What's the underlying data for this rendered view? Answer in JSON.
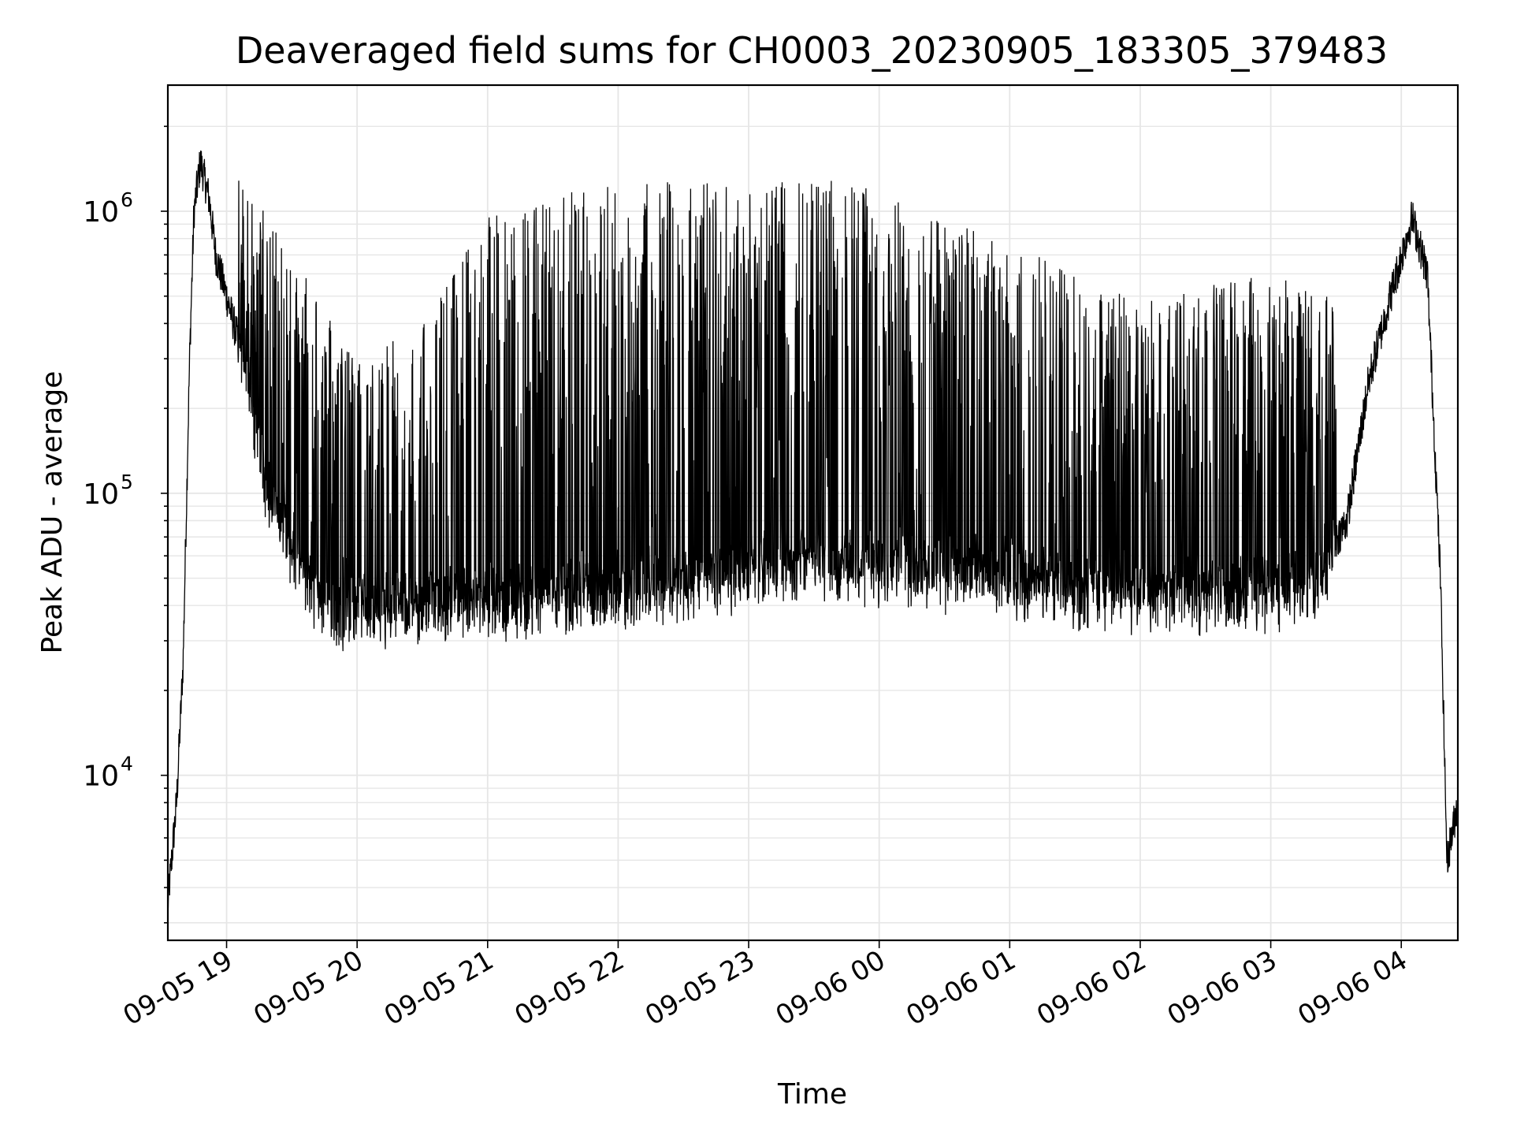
{
  "chart_data": {
    "type": "line",
    "title": "Deaveraged field sums for CH0003_20230905_183305_379483",
    "xlabel": "Time",
    "ylabel": "Peak ADU - average",
    "yscale": "log",
    "xlim": [
      "09-05 18:33",
      "09-06 04:26"
    ],
    "ylim": [
      2600,
      2800000
    ],
    "grid": true,
    "line_color": "#000000",
    "x_ticks": [
      "09-05 19",
      "09-05 20",
      "09-05 21",
      "09-05 22",
      "09-05 23",
      "09-06 00",
      "09-06 01",
      "09-06 02",
      "09-06 03",
      "09-06 04"
    ],
    "y_ticks": [
      {
        "base": "10",
        "exp": "4",
        "value": 10000
      },
      {
        "base": "10",
        "exp": "5",
        "value": 100000
      },
      {
        "base": "10",
        "exp": "6",
        "value": 1000000
      }
    ],
    "series": [
      {
        "x_start": "09-05 18:33",
        "x_end": "09-06 04:26",
        "description_points": [
          [
            "09-05 18:33",
            3500
          ],
          [
            "09-05 18:37",
            8000
          ],
          [
            "09-05 18:40",
            25000
          ],
          [
            "09-05 18:43",
            300000
          ],
          [
            "09-05 18:45",
            1000000
          ],
          [
            "09-05 18:48",
            1500000
          ],
          [
            "09-05 18:52",
            1100000
          ],
          [
            "09-05 18:55",
            700000
          ],
          [
            "09-05 19:00",
            500000
          ],
          [
            "09-05 19:10",
            250000
          ],
          [
            "09-05 19:20",
            100000
          ],
          [
            "09-05 19:35",
            55000
          ],
          [
            "09-05 19:50",
            40000
          ],
          [
            "09-05 20:30",
            42000
          ],
          [
            "09-05 21:30",
            45000
          ],
          [
            "09-05 22:30",
            50000
          ],
          [
            "09-05 23:30",
            60000
          ],
          [
            "09-06 00:30",
            55000
          ],
          [
            "09-06 01:30",
            48000
          ],
          [
            "09-06 02:30",
            45000
          ],
          [
            "09-06 03:20",
            50000
          ],
          [
            "09-06 03:35",
            80000
          ],
          [
            "09-06 03:45",
            250000
          ],
          [
            "09-06 03:55",
            500000
          ],
          [
            "09-06 04:05",
            950000
          ],
          [
            "09-06 04:12",
            600000
          ],
          [
            "09-06 04:18",
            50000
          ],
          [
            "09-06 04:21",
            5000
          ],
          [
            "09-06 04:26",
            8000
          ]
        ],
        "spike_envelope": [
          [
            "09-05 19:05",
            1500000
          ],
          [
            "09-05 19:30",
            700000
          ],
          [
            "09-05 20:00",
            300000
          ],
          [
            "09-05 20:30",
            400000
          ],
          [
            "09-05 21:00",
            1000000
          ],
          [
            "09-05 22:00",
            1300000
          ],
          [
            "09-05 23:00",
            1300000
          ],
          [
            "09-06 00:00",
            1300000
          ],
          [
            "09-06 00:30",
            1000000
          ],
          [
            "09-06 01:00",
            800000
          ],
          [
            "09-06 01:30",
            600000
          ],
          [
            "09-06 02:00",
            500000
          ],
          [
            "09-06 02:30",
            550000
          ],
          [
            "09-06 03:00",
            600000
          ],
          [
            "09-06 03:30",
            500000
          ]
        ]
      }
    ]
  }
}
